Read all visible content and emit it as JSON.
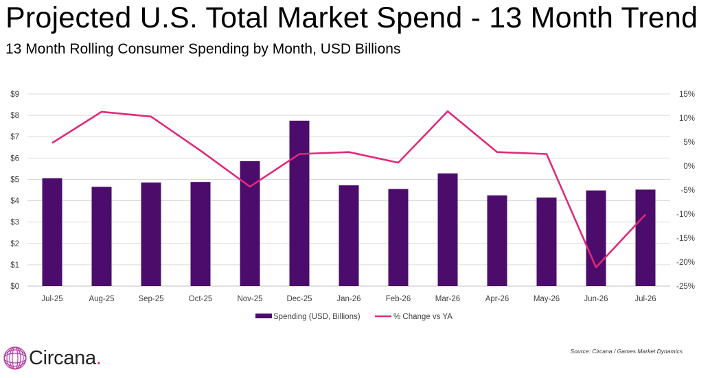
{
  "title": "Projected U.S. Total Market Spend - 13 Month Trend",
  "subtitle": "13 Month Rolling Consumer Spending by Month, USD Billions",
  "source": "Source: Circana / Games Market Dynamics",
  "logo": {
    "text": "Circana",
    "dot": "."
  },
  "colors": {
    "bar": "#4b0c6b",
    "line": "#e0297a",
    "grid": "#d9d9d9",
    "logo_ring": "#c83b9a"
  },
  "chart_data": {
    "type": "bar",
    "categories": [
      "Jul-25",
      "Aug-25",
      "Sep-25",
      "Oct-25",
      "Nov-25",
      "Dec-25",
      "Jan-26",
      "Feb-26",
      "Mar-26",
      "Apr-26",
      "May-26",
      "Jun-26",
      "Jul-26"
    ],
    "series": [
      {
        "name": "Spending (USD, Billions)",
        "type": "bar",
        "axis": "left",
        "values": [
          5.05,
          4.65,
          4.85,
          4.88,
          5.85,
          7.75,
          4.72,
          4.55,
          5.28,
          4.25,
          4.15,
          4.48,
          4.52
        ]
      },
      {
        "name": "% Change vs YA",
        "type": "line",
        "axis": "right",
        "values": [
          4.8,
          11.3,
          10.3,
          3.2,
          -4.3,
          2.5,
          2.9,
          0.7,
          11.4,
          2.9,
          2.5,
          -21.1,
          -10.1
        ]
      }
    ],
    "y_left": {
      "ylim": [
        0,
        9
      ],
      "ticks": [
        "$0",
        "$1",
        "$2",
        "$3",
        "$4",
        "$5",
        "$6",
        "$7",
        "$8",
        "$9"
      ]
    },
    "y_right": {
      "ylim": [
        -25,
        15
      ],
      "ticks": [
        "-25%",
        "-20%",
        "-15%",
        "-10%",
        "-5%",
        "0%",
        "5%",
        "10%",
        "15%"
      ]
    },
    "grid": true,
    "legend": "bottom"
  }
}
